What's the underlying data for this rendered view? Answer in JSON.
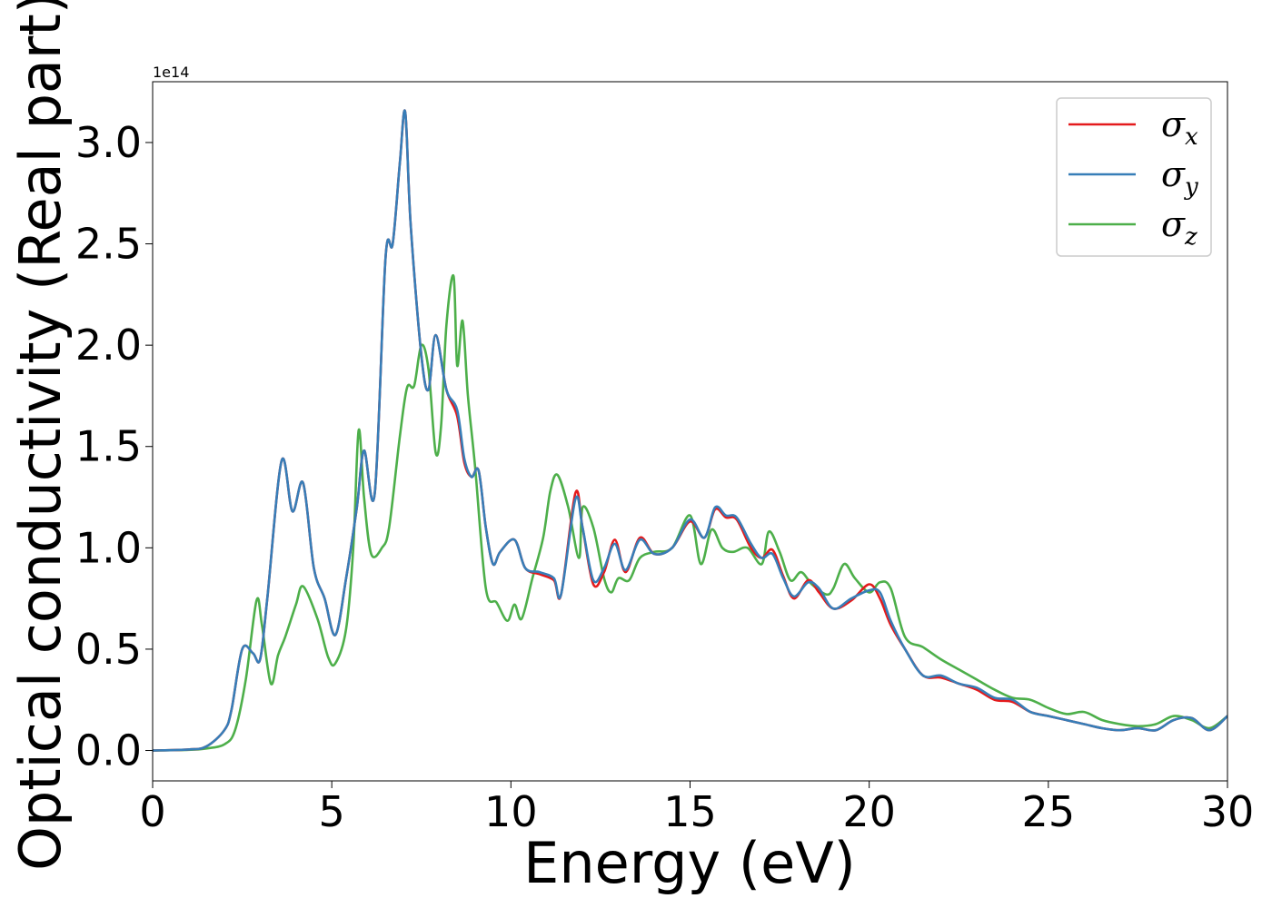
{
  "chart_data": {
    "type": "line",
    "xlabel": "Energy (eV)",
    "ylabel": "Optical conductivity (Real part)",
    "y_offset_label": "1e14",
    "xlim": [
      0,
      30
    ],
    "ylim": [
      -0.15,
      3.3
    ],
    "xticks": [
      0,
      5,
      10,
      15,
      20,
      25,
      30
    ],
    "xtick_labels": [
      "0",
      "5",
      "10",
      "15",
      "20",
      "25",
      "30"
    ],
    "yticks": [
      0.0,
      0.5,
      1.0,
      1.5,
      2.0,
      2.5,
      3.0
    ],
    "ytick_labels": [
      "0.0",
      "0.5",
      "1.0",
      "1.5",
      "2.0",
      "2.5",
      "3.0"
    ],
    "grid": false,
    "legend_position": "top-right",
    "series": [
      {
        "name": "σx",
        "symbol": "σ",
        "subscript": "x",
        "color": "#e41a1c",
        "x": [
          0,
          1,
          1.5,
          2.0,
          2.2,
          2.5,
          2.8,
          3.0,
          3.2,
          3.6,
          3.9,
          4.2,
          4.5,
          4.8,
          5.1,
          5.4,
          5.7,
          5.9,
          6.2,
          6.5,
          6.7,
          6.9,
          7.05,
          7.2,
          7.5,
          7.7,
          7.9,
          8.2,
          8.5,
          8.7,
          8.9,
          9.1,
          9.3,
          9.5,
          9.7,
          10.1,
          10.4,
          10.8,
          11.2,
          11.4,
          11.8,
          12.0,
          12.3,
          12.6,
          12.9,
          13.2,
          13.6,
          14.0,
          14.5,
          15.0,
          15.4,
          15.7,
          16.0,
          16.3,
          16.7,
          17.0,
          17.3,
          17.6,
          17.9,
          18.3,
          18.6,
          19.0,
          19.5,
          20.0,
          20.3,
          20.6,
          21.0,
          21.5,
          22.0,
          22.5,
          23.0,
          23.5,
          24.0,
          24.5,
          25.0,
          25.5,
          26.0,
          26.5,
          27.0,
          27.5,
          28.0,
          28.5,
          29.0,
          29.5,
          30.0
        ],
        "values": [
          0.0,
          0.005,
          0.02,
          0.1,
          0.2,
          0.5,
          0.48,
          0.45,
          0.75,
          1.43,
          1.18,
          1.32,
          0.9,
          0.75,
          0.57,
          0.85,
          1.2,
          1.48,
          1.27,
          2.43,
          2.5,
          2.9,
          3.15,
          2.6,
          1.95,
          1.78,
          2.05,
          1.78,
          1.65,
          1.42,
          1.35,
          1.38,
          1.1,
          0.92,
          0.98,
          1.04,
          0.9,
          0.87,
          0.84,
          0.77,
          1.27,
          1.1,
          0.82,
          0.88,
          1.04,
          0.88,
          1.05,
          0.97,
          1.0,
          1.13,
          1.05,
          1.19,
          1.15,
          1.14,
          1.0,
          0.95,
          0.99,
          0.86,
          0.75,
          0.84,
          0.78,
          0.7,
          0.74,
          0.82,
          0.75,
          0.62,
          0.5,
          0.37,
          0.36,
          0.33,
          0.3,
          0.25,
          0.24,
          0.19,
          0.17,
          0.15,
          0.13,
          0.11,
          0.1,
          0.11,
          0.1,
          0.15,
          0.16,
          0.1,
          0.17
        ]
      },
      {
        "name": "σy",
        "symbol": "σ",
        "subscript": "y",
        "color": "#377eb8",
        "x": [
          0,
          1,
          1.5,
          2.0,
          2.2,
          2.5,
          2.8,
          3.0,
          3.2,
          3.6,
          3.9,
          4.2,
          4.5,
          4.8,
          5.1,
          5.4,
          5.7,
          5.9,
          6.2,
          6.5,
          6.7,
          6.9,
          7.05,
          7.2,
          7.5,
          7.7,
          7.9,
          8.2,
          8.5,
          8.7,
          8.9,
          9.1,
          9.3,
          9.5,
          9.7,
          10.1,
          10.4,
          10.8,
          11.2,
          11.4,
          11.8,
          12.0,
          12.3,
          12.6,
          12.9,
          13.2,
          13.6,
          14.0,
          14.5,
          15.0,
          15.4,
          15.7,
          16.0,
          16.3,
          16.7,
          17.0,
          17.3,
          17.6,
          17.9,
          18.3,
          18.6,
          19.0,
          19.5,
          20.0,
          20.3,
          20.6,
          21.0,
          21.5,
          22.0,
          22.5,
          23.0,
          23.5,
          24.0,
          24.5,
          25.0,
          25.5,
          26.0,
          26.5,
          27.0,
          27.5,
          28.0,
          28.5,
          29.0,
          29.5,
          30.0
        ],
        "values": [
          0.0,
          0.005,
          0.02,
          0.1,
          0.2,
          0.5,
          0.48,
          0.45,
          0.75,
          1.43,
          1.18,
          1.32,
          0.9,
          0.75,
          0.57,
          0.85,
          1.2,
          1.48,
          1.27,
          2.43,
          2.5,
          2.9,
          3.15,
          2.6,
          1.95,
          1.78,
          2.05,
          1.78,
          1.68,
          1.44,
          1.35,
          1.38,
          1.1,
          0.92,
          0.98,
          1.04,
          0.9,
          0.88,
          0.85,
          0.77,
          1.24,
          1.1,
          0.84,
          0.9,
          1.02,
          0.89,
          1.04,
          0.97,
          1.0,
          1.14,
          1.05,
          1.2,
          1.16,
          1.15,
          1.02,
          0.95,
          0.97,
          0.85,
          0.76,
          0.83,
          0.8,
          0.7,
          0.75,
          0.79,
          0.78,
          0.64,
          0.5,
          0.37,
          0.37,
          0.33,
          0.31,
          0.26,
          0.25,
          0.19,
          0.17,
          0.15,
          0.13,
          0.11,
          0.1,
          0.11,
          0.1,
          0.15,
          0.16,
          0.1,
          0.17
        ]
      },
      {
        "name": "σz",
        "symbol": "σ",
        "subscript": "z",
        "color": "#4daf4a",
        "x": [
          0,
          1,
          1.5,
          2.0,
          2.3,
          2.6,
          2.9,
          3.05,
          3.3,
          3.5,
          3.7,
          4.0,
          4.2,
          4.6,
          4.9,
          5.1,
          5.4,
          5.6,
          5.75,
          5.9,
          6.1,
          6.4,
          6.6,
          6.9,
          7.1,
          7.3,
          7.5,
          7.7,
          7.9,
          8.05,
          8.2,
          8.4,
          8.5,
          8.65,
          8.8,
          9.0,
          9.3,
          9.6,
          9.9,
          10.1,
          10.3,
          10.6,
          10.9,
          11.1,
          11.3,
          11.6,
          11.9,
          12.0,
          12.3,
          12.6,
          12.8,
          13.0,
          13.3,
          13.6,
          14.0,
          14.5,
          15.0,
          15.3,
          15.6,
          15.9,
          16.2,
          16.6,
          17.0,
          17.2,
          17.5,
          17.8,
          18.1,
          18.4,
          18.8,
          19.0,
          19.3,
          19.6,
          20.0,
          20.3,
          20.6,
          21.0,
          21.5,
          22.0,
          22.5,
          23.0,
          23.5,
          24.0,
          24.5,
          25.0,
          25.5,
          26.0,
          26.5,
          27.0,
          27.5,
          28.0,
          28.5,
          29.0,
          29.5,
          30.0
        ],
        "values": [
          0.0,
          0.003,
          0.01,
          0.03,
          0.1,
          0.35,
          0.74,
          0.62,
          0.33,
          0.47,
          0.56,
          0.72,
          0.81,
          0.65,
          0.46,
          0.43,
          0.6,
          1.0,
          1.58,
          1.25,
          0.97,
          1.0,
          1.1,
          1.55,
          1.79,
          1.8,
          2.0,
          1.88,
          1.47,
          1.6,
          2.1,
          2.34,
          1.9,
          2.12,
          1.75,
          1.4,
          0.8,
          0.73,
          0.64,
          0.72,
          0.65,
          0.85,
          1.05,
          1.28,
          1.36,
          1.2,
          0.95,
          1.2,
          1.1,
          0.85,
          0.78,
          0.85,
          0.84,
          0.95,
          0.98,
          1.0,
          1.16,
          0.92,
          1.09,
          1.0,
          0.98,
          1.0,
          0.92,
          1.08,
          0.98,
          0.84,
          0.88,
          0.82,
          0.77,
          0.8,
          0.92,
          0.85,
          0.78,
          0.83,
          0.8,
          0.56,
          0.51,
          0.45,
          0.4,
          0.35,
          0.3,
          0.26,
          0.25,
          0.21,
          0.18,
          0.19,
          0.15,
          0.13,
          0.12,
          0.13,
          0.17,
          0.15,
          0.11,
          0.17
        ]
      }
    ]
  }
}
